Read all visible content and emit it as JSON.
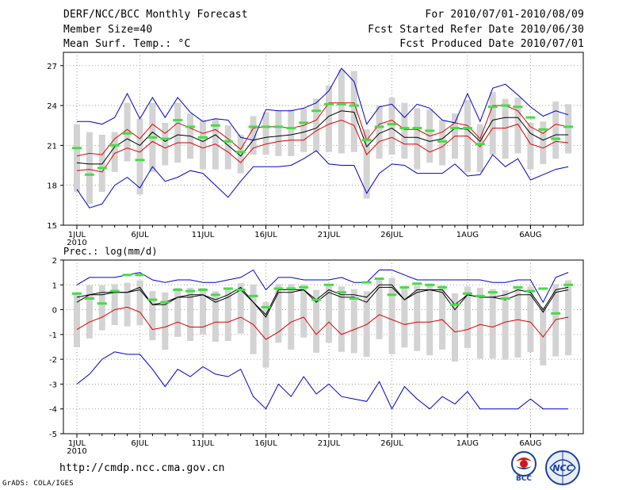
{
  "header": {
    "title": "DERF/NCC/BCC Monthly Forecast",
    "member": "Member Size=40",
    "variable": "Mean Surf. Temp.: °C",
    "period": "For 2010/07/01-2010/08/09",
    "started": "Fcst Started Refer Date 2010/06/30",
    "produced": "Fcst Produced Date 2010/07/01"
  },
  "footer": {
    "url": "http://cmdp.ncc.cma.gov.cn",
    "credit": "GrADS: COLA/IGES",
    "bcc_logo_text": "BCC",
    "ncc_logo_text": "NCC"
  },
  "colors": {
    "box": "#d3d3d3",
    "green": "#44dd44",
    "black": "#000000",
    "red": "#e00000",
    "blue": "#0000cc"
  },
  "chart_data": [
    {
      "type": "line",
      "title": "Mean Surf. Temp.: °C",
      "xlabel": "",
      "ylabel": "",
      "ylim": [
        15,
        28
      ],
      "yticks": [
        15,
        18,
        21,
        24,
        27
      ],
      "xtick_labels": [
        "1JUL",
        "6JUL",
        "11JUL",
        "16JUL",
        "21JUL",
        "26JUL",
        "1AUG",
        "6AUG"
      ],
      "xtick_days": [
        1,
        6,
        11,
        16,
        21,
        26,
        32,
        37
      ],
      "year_label": "2010",
      "days": 40,
      "series": [
        {
          "name": "max",
          "color": "blue",
          "values": [
            22.8,
            22.8,
            22.6,
            23.1,
            24.9,
            23.0,
            24.6,
            23.1,
            24.6,
            23.5,
            22.8,
            23.0,
            22.9,
            21.6,
            21.4,
            23.7,
            23.6,
            23.6,
            23.8,
            24.2,
            25.1,
            26.8,
            25.8,
            22.6,
            23.9,
            24.1,
            23.1,
            24.1,
            23.8,
            22.9,
            22.7,
            24.9,
            22.8,
            25.3,
            25.6,
            24.8,
            23.9,
            23.2,
            23.6,
            23.3
          ]
        },
        {
          "name": "upper",
          "color": "red",
          "values": [
            20.2,
            20.4,
            20.3,
            21.5,
            22.2,
            21.5,
            22.6,
            21.9,
            22.7,
            22.3,
            21.9,
            22.2,
            21.5,
            20.7,
            22.3,
            22.4,
            22.4,
            22.3,
            22.5,
            22.9,
            24.2,
            24.2,
            24.2,
            21.4,
            22.6,
            22.9,
            22.2,
            22.2,
            21.7,
            22.0,
            22.7,
            22.5,
            21.5,
            24.0,
            24.0,
            23.6,
            22.4,
            21.9,
            22.6,
            22.4
          ]
        },
        {
          "name": "mean",
          "color": "black",
          "values": [
            19.7,
            19.6,
            19.6,
            20.9,
            21.5,
            21.0,
            22.0,
            21.3,
            21.8,
            21.7,
            21.3,
            21.8,
            21.0,
            20.2,
            21.4,
            21.6,
            21.7,
            21.8,
            22.0,
            22.3,
            23.2,
            23.6,
            23.5,
            20.9,
            21.9,
            22.3,
            21.6,
            21.6,
            21.3,
            21.5,
            22.3,
            22.2,
            21.3,
            22.9,
            23.1,
            23.1,
            21.9,
            21.4,
            21.8,
            21.8
          ]
        },
        {
          "name": "lower",
          "color": "red",
          "values": [
            19.1,
            19.2,
            19.0,
            20.4,
            20.8,
            20.5,
            21.3,
            20.8,
            21.2,
            21.2,
            20.8,
            21.1,
            20.5,
            19.7,
            20.8,
            21.1,
            21.3,
            21.4,
            21.4,
            22.1,
            22.6,
            22.9,
            22.5,
            20.3,
            21.3,
            21.6,
            21.1,
            21.1,
            20.5,
            20.9,
            21.7,
            21.7,
            20.9,
            22.3,
            22.3,
            22.6,
            21.1,
            20.8,
            21.3,
            21.2
          ]
        },
        {
          "name": "min",
          "color": "blue",
          "values": [
            17.7,
            16.3,
            16.6,
            18.0,
            18.6,
            17.8,
            19.4,
            18.3,
            18.6,
            19.1,
            18.9,
            18.0,
            17.1,
            18.3,
            19.4,
            19.4,
            19.4,
            19.5,
            20.0,
            20.6,
            19.6,
            19.5,
            19.5,
            17.4,
            18.9,
            19.6,
            19.5,
            18.9,
            18.9,
            18.9,
            19.6,
            18.7,
            18.8,
            20.3,
            19.4,
            20.0,
            18.4,
            18.8,
            19.2,
            19.4
          ]
        }
      ],
      "green_marks": [
        20.8,
        18.8,
        19.3,
        21.0,
        21.9,
        19.9,
        21.6,
        21.5,
        22.9,
        22.4,
        21.6,
        22.5,
        21.3,
        20.5,
        22.4,
        22.4,
        22.4,
        22.3,
        22.7,
        23.6,
        24.1,
        24.1,
        24.0,
        21.4,
        22.4,
        22.6,
        22.3,
        22.3,
        22.1,
        21.3,
        22.3,
        22.3,
        21.1,
        23.9,
        24.0,
        23.9,
        23.1,
        22.2,
        21.5,
        22.4
      ],
      "box_range": [
        [
          17.5,
          22.6
        ],
        [
          16.6,
          22.0
        ],
        [
          17.5,
          21.8
        ],
        [
          19.0,
          22.0
        ],
        [
          19.8,
          24.2
        ],
        [
          17.3,
          23.0
        ],
        [
          19.0,
          24.2
        ],
        [
          19.5,
          22.7
        ],
        [
          19.7,
          24.2
        ],
        [
          20.0,
          23.4
        ],
        [
          19.2,
          22.9
        ],
        [
          19.2,
          23.0
        ],
        [
          19.2,
          22.5
        ],
        [
          18.9,
          21.8
        ],
        [
          20.3,
          23.2
        ],
        [
          20.3,
          23.5
        ],
        [
          20.2,
          23.6
        ],
        [
          20.2,
          23.7
        ],
        [
          20.5,
          23.8
        ],
        [
          20.5,
          24.5
        ],
        [
          20.5,
          25.5
        ],
        [
          20.4,
          26.7
        ],
        [
          20.5,
          26.6
        ],
        [
          17.0,
          22.2
        ],
        [
          20.0,
          24.0
        ],
        [
          20.3,
          24.6
        ],
        [
          20.0,
          24.2
        ],
        [
          19.2,
          23.8
        ],
        [
          19.7,
          23.7
        ],
        [
          19.5,
          22.9
        ],
        [
          20.0,
          23.4
        ],
        [
          19.0,
          24.4
        ],
        [
          19.0,
          22.6
        ],
        [
          20.3,
          25.0
        ],
        [
          20.0,
          24.5
        ],
        [
          20.4,
          24.6
        ],
        [
          19.2,
          22.7
        ],
        [
          19.6,
          22.8
        ],
        [
          20.0,
          24.3
        ],
        [
          20.4,
          24.1
        ]
      ]
    },
    {
      "type": "line",
      "title": "Prec.: log(mm/d)",
      "xlabel": "",
      "ylabel": "",
      "ylim": [
        -5,
        2
      ],
      "yticks": [
        -5,
        -4,
        -3,
        -2,
        -1,
        0,
        1,
        2
      ],
      "xtick_labels": [
        "1JUL",
        "6JUL",
        "11JUL",
        "16JUL",
        "21JUL",
        "26JUL",
        "1AUG",
        "6AUG"
      ],
      "xtick_days": [
        1,
        6,
        11,
        16,
        21,
        26,
        32,
        37
      ],
      "year_label": "2010",
      "days": 40,
      "series": [
        {
          "name": "max",
          "color": "blue",
          "values": [
            1.0,
            1.3,
            1.3,
            1.3,
            1.4,
            1.5,
            1.2,
            1.1,
            1.2,
            1.2,
            1.1,
            1.1,
            1.2,
            1.3,
            1.6,
            0.8,
            1.3,
            1.3,
            1.2,
            1.2,
            1.2,
            1.3,
            1.1,
            1.1,
            1.6,
            1.6,
            1.4,
            1.2,
            1.2,
            1.2,
            1.2,
            1.2,
            1.2,
            1.1,
            1.1,
            1.2,
            1.2,
            0.3,
            1.3,
            1.5
          ]
        },
        {
          "name": "upper",
          "color": "black",
          "values": [
            0.5,
            0.6,
            0.7,
            0.7,
            0.7,
            0.9,
            0.2,
            0.3,
            0.5,
            0.6,
            0.6,
            0.4,
            0.6,
            0.9,
            0.3,
            -0.2,
            0.8,
            0.8,
            0.8,
            0.4,
            0.8,
            0.6,
            0.6,
            0.5,
            1.0,
            1.0,
            0.4,
            0.8,
            0.8,
            0.8,
            0.2,
            0.6,
            0.5,
            0.5,
            0.6,
            0.8,
            0.7,
            0.0,
            0.8,
            0.9
          ]
        },
        {
          "name": "mean",
          "color": "black",
          "values": [
            0.3,
            0.6,
            0.6,
            0.7,
            0.7,
            0.8,
            0.2,
            0.2,
            0.5,
            0.5,
            0.6,
            0.3,
            0.5,
            0.8,
            0.3,
            -0.3,
            0.7,
            0.7,
            0.8,
            0.3,
            0.7,
            0.5,
            0.5,
            0.3,
            0.9,
            0.9,
            0.4,
            0.7,
            0.8,
            0.7,
            0.0,
            0.6,
            0.5,
            0.5,
            0.4,
            0.6,
            0.6,
            -0.1,
            0.7,
            0.8
          ]
        },
        {
          "name": "lower",
          "color": "red",
          "values": [
            -0.8,
            -0.5,
            -0.3,
            0.0,
            0.1,
            -0.1,
            -0.8,
            -0.7,
            -0.5,
            -0.7,
            -0.7,
            -0.5,
            -0.5,
            -0.3,
            -0.6,
            -1.2,
            -0.9,
            -0.5,
            -0.3,
            -1.0,
            -0.5,
            -1.0,
            -0.8,
            -0.6,
            -0.2,
            -0.4,
            -0.6,
            -0.5,
            -0.5,
            -0.4,
            -0.9,
            -0.8,
            -0.6,
            -0.7,
            -0.5,
            -0.4,
            -0.5,
            -1.1,
            -0.4,
            -0.3
          ]
        },
        {
          "name": "min",
          "color": "blue",
          "values": [
            -3.0,
            -2.6,
            -2.0,
            -1.7,
            -1.8,
            -1.8,
            -2.4,
            -3.1,
            -2.4,
            -2.7,
            -2.3,
            -2.6,
            -2.7,
            -2.4,
            -3.5,
            -4.0,
            -3.0,
            -3.5,
            -2.7,
            -3.4,
            -3.0,
            -3.5,
            -3.6,
            -3.7,
            -2.9,
            -4.0,
            -3.1,
            -3.6,
            -4.0,
            -3.5,
            -3.8,
            -3.3,
            -4.0,
            -4.0,
            -4.0,
            -4.0,
            -3.6,
            -4.0,
            -4.0,
            -4.0
          ]
        }
      ],
      "green_marks": [
        0.65,
        0.45,
        0.25,
        0.75,
        1.4,
        1.4,
        0.4,
        0.3,
        0.8,
        0.75,
        0.8,
        0.6,
        0.85,
        0.8,
        0.55,
        0.1,
        0.85,
        0.85,
        0.9,
        0.4,
        1.0,
        0.7,
        0.45,
        1.1,
        1.25,
        0.6,
        0.9,
        1.05,
        1.0,
        0.9,
        0.2,
        0.65,
        0.55,
        0.7,
        0.45,
        0.9,
        0.75,
        0.85,
        -0.15,
        1.0
      ]
    }
  ]
}
